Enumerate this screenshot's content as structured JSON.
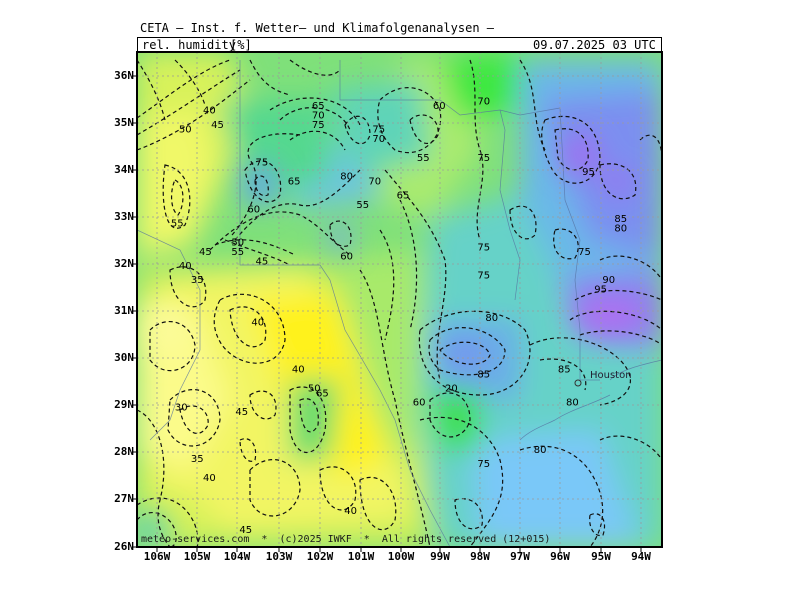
{
  "header": {
    "title": "CETA — Inst. f. Wetter— und Klimafolgenanalysen —",
    "variable": "rel. humidity",
    "unit": "[%]",
    "valid_time": "09.07.2025 03 UTC"
  },
  "axes": {
    "lat_labels": [
      "36N",
      "35N",
      "34N",
      "33N",
      "32N",
      "31N",
      "30N",
      "29N",
      "28N",
      "27N",
      "26N"
    ],
    "lon_labels": [
      "106W",
      "105W",
      "104W",
      "103W",
      "102W",
      "101W",
      "100W",
      "99W",
      "98W",
      "97W",
      "96W",
      "95W",
      "94W"
    ]
  },
  "city_label": "Houston",
  "contour_labels": [
    {
      "text": "40",
      "lon": -104.7,
      "lat": 35.2
    },
    {
      "text": "45",
      "lon": -104.5,
      "lat": 34.9
    },
    {
      "text": "50",
      "lon": -105.3,
      "lat": 34.8
    },
    {
      "text": "55",
      "lon": -105.5,
      "lat": 32.8
    },
    {
      "text": "45",
      "lon": -104.8,
      "lat": 32.2
    },
    {
      "text": "40",
      "lon": -105.3,
      "lat": 31.9
    },
    {
      "text": "35",
      "lon": -105.0,
      "lat": 31.6
    },
    {
      "text": "65",
      "lon": -102.0,
      "lat": 35.3
    },
    {
      "text": "70",
      "lon": -102.0,
      "lat": 35.1
    },
    {
      "text": "75",
      "lon": -102.0,
      "lat": 34.9
    },
    {
      "text": "75",
      "lon": -100.5,
      "lat": 34.8
    },
    {
      "text": "70",
      "lon": -100.5,
      "lat": 34.6
    },
    {
      "text": "60",
      "lon": -99.0,
      "lat": 35.3
    },
    {
      "text": "70",
      "lon": -97.9,
      "lat": 35.4
    },
    {
      "text": "55",
      "lon": -99.4,
      "lat": 34.2
    },
    {
      "text": "75",
      "lon": -97.9,
      "lat": 34.2
    },
    {
      "text": "75",
      "lon": -103.4,
      "lat": 34.1
    },
    {
      "text": "65",
      "lon": -102.6,
      "lat": 33.7
    },
    {
      "text": "80",
      "lon": -101.3,
      "lat": 33.8
    },
    {
      "text": "70",
      "lon": -100.6,
      "lat": 33.7
    },
    {
      "text": "65",
      "lon": -99.9,
      "lat": 33.4
    },
    {
      "text": "55",
      "lon": -100.9,
      "lat": 33.2
    },
    {
      "text": "60",
      "lon": -103.6,
      "lat": 33.1
    },
    {
      "text": "50",
      "lon": -104.0,
      "lat": 32.4
    },
    {
      "text": "55",
      "lon": -104.0,
      "lat": 32.2
    },
    {
      "text": "45",
      "lon": -103.4,
      "lat": 32.0
    },
    {
      "text": "60",
      "lon": -101.3,
      "lat": 32.1
    },
    {
      "text": "75",
      "lon": -97.9,
      "lat": 32.3
    },
    {
      "text": "75",
      "lon": -97.9,
      "lat": 31.7
    },
    {
      "text": "75",
      "lon": -95.4,
      "lat": 32.2
    },
    {
      "text": "85",
      "lon": -94.5,
      "lat": 32.9
    },
    {
      "text": "80",
      "lon": -94.5,
      "lat": 32.7
    },
    {
      "text": "90",
      "lon": -94.8,
      "lat": 31.6
    },
    {
      "text": "95",
      "lon": -95.0,
      "lat": 31.4
    },
    {
      "text": "95",
      "lon": -95.3,
      "lat": 33.9
    },
    {
      "text": "40",
      "lon": -103.5,
      "lat": 30.7
    },
    {
      "text": "80",
      "lon": -97.7,
      "lat": 30.8
    },
    {
      "text": "85",
      "lon": -97.9,
      "lat": 29.6
    },
    {
      "text": "85",
      "lon": -95.9,
      "lat": 29.7
    },
    {
      "text": "40",
      "lon": -102.5,
      "lat": 29.7
    },
    {
      "text": "20",
      "lon": -98.7,
      "lat": 29.3
    },
    {
      "text": "50",
      "lon": -102.1,
      "lat": 29.3
    },
    {
      "text": "65",
      "lon": -101.9,
      "lat": 29.2
    },
    {
      "text": "60",
      "lon": -99.5,
      "lat": 29.0
    },
    {
      "text": "80",
      "lon": -95.7,
      "lat": 29.0
    },
    {
      "text": "30",
      "lon": -105.4,
      "lat": 28.9
    },
    {
      "text": "45",
      "lon": -103.9,
      "lat": 28.8
    },
    {
      "text": "35",
      "lon": -105.0,
      "lat": 27.8
    },
    {
      "text": "40",
      "lon": -104.7,
      "lat": 27.4
    },
    {
      "text": "80",
      "lon": -96.5,
      "lat": 28.0
    },
    {
      "text": "75",
      "lon": -97.9,
      "lat": 27.7
    },
    {
      "text": "40",
      "lon": -101.2,
      "lat": 26.7
    },
    {
      "text": "45",
      "lon": -103.8,
      "lat": 26.3
    }
  ],
  "credit": "meteo-services.com  *  (c)2025 IWKF  *  All rights reserved (12+015)"
}
